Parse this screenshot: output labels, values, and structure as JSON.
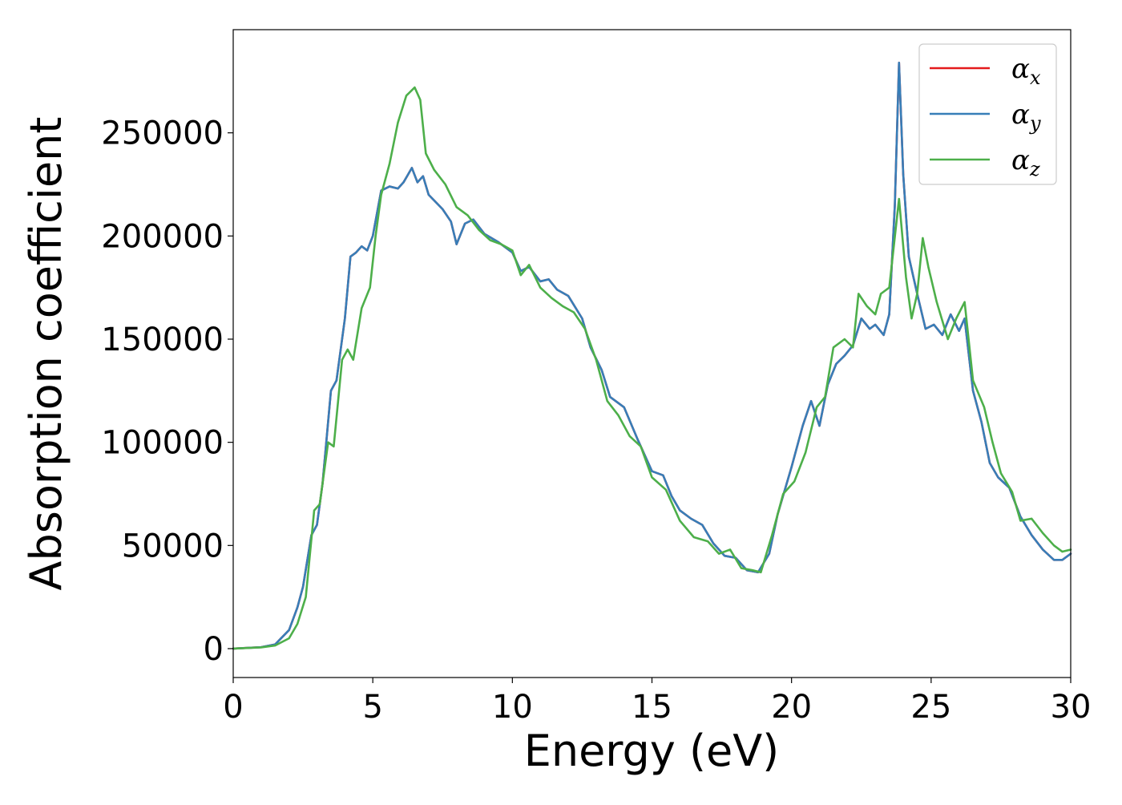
{
  "chart_data": {
    "type": "line",
    "xlabel": "Energy (eV)",
    "ylabel": "Absorption coefficient",
    "xlim": [
      0,
      30
    ],
    "ylim": [
      -14000,
      300000
    ],
    "x_ticks": [
      0,
      5,
      10,
      15,
      20,
      25,
      30
    ],
    "y_ticks": [
      0,
      50000,
      100000,
      150000,
      200000,
      250000
    ],
    "x_tick_labels": [
      "0",
      "5",
      "10",
      "15",
      "20",
      "25",
      "30"
    ],
    "y_tick_labels": [
      "0",
      "50000",
      "100000",
      "150000",
      "200000",
      "250000"
    ],
    "grid": false,
    "legend_position": "top-right",
    "series": [
      {
        "name": "αx",
        "legend_base": "α",
        "legend_sub": "x",
        "color": "#e41a1c",
        "points": [
          [
            0,
            0
          ],
          [
            1,
            700
          ],
          [
            1.5,
            2000
          ],
          [
            2,
            9000
          ],
          [
            2.3,
            20000
          ],
          [
            2.5,
            30000
          ],
          [
            2.8,
            55000
          ],
          [
            3,
            60000
          ],
          [
            3.2,
            80000
          ],
          [
            3.5,
            125000
          ],
          [
            3.7,
            130000
          ],
          [
            4,
            160000
          ],
          [
            4.2,
            190000
          ],
          [
            4.4,
            192000
          ],
          [
            4.6,
            195000
          ],
          [
            4.8,
            193000
          ],
          [
            5,
            200000
          ],
          [
            5.3,
            222000
          ],
          [
            5.6,
            224000
          ],
          [
            5.9,
            223000
          ],
          [
            6.1,
            226000
          ],
          [
            6.4,
            233000
          ],
          [
            6.6,
            226000
          ],
          [
            6.8,
            229000
          ],
          [
            7,
            220000
          ],
          [
            7.5,
            213000
          ],
          [
            7.8,
            207000
          ],
          [
            8,
            196000
          ],
          [
            8.3,
            206000
          ],
          [
            8.6,
            208000
          ],
          [
            9,
            201000
          ],
          [
            9.5,
            197000
          ],
          [
            10,
            192000
          ],
          [
            10.3,
            183000
          ],
          [
            10.6,
            185000
          ],
          [
            11,
            178000
          ],
          [
            11.3,
            179000
          ],
          [
            11.6,
            174000
          ],
          [
            12,
            171000
          ],
          [
            12.5,
            160000
          ],
          [
            12.8,
            146000
          ],
          [
            13.2,
            135000
          ],
          [
            13.5,
            122000
          ],
          [
            14,
            117000
          ],
          [
            14.5,
            101000
          ],
          [
            15,
            86000
          ],
          [
            15.4,
            84000
          ],
          [
            15.7,
            74000
          ],
          [
            16,
            67000
          ],
          [
            16.4,
            63000
          ],
          [
            16.8,
            60000
          ],
          [
            17.2,
            51000
          ],
          [
            17.6,
            45000
          ],
          [
            18,
            44000
          ],
          [
            18.4,
            38000
          ],
          [
            18.8,
            37000
          ],
          [
            19.2,
            46000
          ],
          [
            19.5,
            65000
          ],
          [
            20,
            88000
          ],
          [
            20.4,
            108000
          ],
          [
            20.7,
            120000
          ],
          [
            21,
            108000
          ],
          [
            21.3,
            128000
          ],
          [
            21.6,
            138000
          ],
          [
            21.9,
            142000
          ],
          [
            22.2,
            147000
          ],
          [
            22.5,
            160000
          ],
          [
            22.8,
            155000
          ],
          [
            23,
            157000
          ],
          [
            23.3,
            152000
          ],
          [
            23.5,
            162000
          ],
          [
            23.7,
            215000
          ],
          [
            23.85,
            284000
          ],
          [
            24,
            230000
          ],
          [
            24.2,
            190000
          ],
          [
            24.5,
            172000
          ],
          [
            24.8,
            155000
          ],
          [
            25.1,
            157000
          ],
          [
            25.4,
            152000
          ],
          [
            25.7,
            162000
          ],
          [
            26,
            154000
          ],
          [
            26.2,
            160000
          ],
          [
            26.5,
            125000
          ],
          [
            26.8,
            110000
          ],
          [
            27.1,
            90000
          ],
          [
            27.4,
            83000
          ],
          [
            27.8,
            78000
          ],
          [
            28.2,
            64000
          ],
          [
            28.6,
            55000
          ],
          [
            29,
            48000
          ],
          [
            29.4,
            43000
          ],
          [
            29.7,
            43000
          ],
          [
            30,
            46000
          ]
        ]
      },
      {
        "name": "αy",
        "legend_base": "α",
        "legend_sub": "y",
        "color": "#377eb8",
        "points": [
          [
            0,
            0
          ],
          [
            1,
            700
          ],
          [
            1.5,
            2000
          ],
          [
            2,
            9000
          ],
          [
            2.3,
            20000
          ],
          [
            2.5,
            30000
          ],
          [
            2.8,
            55000
          ],
          [
            3,
            60000
          ],
          [
            3.2,
            80000
          ],
          [
            3.5,
            125000
          ],
          [
            3.7,
            130000
          ],
          [
            4,
            160000
          ],
          [
            4.2,
            190000
          ],
          [
            4.4,
            192000
          ],
          [
            4.6,
            195000
          ],
          [
            4.8,
            193000
          ],
          [
            5,
            200000
          ],
          [
            5.3,
            222000
          ],
          [
            5.6,
            224000
          ],
          [
            5.9,
            223000
          ],
          [
            6.1,
            226000
          ],
          [
            6.4,
            233000
          ],
          [
            6.6,
            226000
          ],
          [
            6.8,
            229000
          ],
          [
            7,
            220000
          ],
          [
            7.5,
            213000
          ],
          [
            7.8,
            207000
          ],
          [
            8,
            196000
          ],
          [
            8.3,
            206000
          ],
          [
            8.6,
            208000
          ],
          [
            9,
            201000
          ],
          [
            9.5,
            197000
          ],
          [
            10,
            192000
          ],
          [
            10.3,
            183000
          ],
          [
            10.6,
            185000
          ],
          [
            11,
            178000
          ],
          [
            11.3,
            179000
          ],
          [
            11.6,
            174000
          ],
          [
            12,
            171000
          ],
          [
            12.5,
            160000
          ],
          [
            12.8,
            146000
          ],
          [
            13.2,
            135000
          ],
          [
            13.5,
            122000
          ],
          [
            14,
            117000
          ],
          [
            14.5,
            101000
          ],
          [
            15,
            86000
          ],
          [
            15.4,
            84000
          ],
          [
            15.7,
            74000
          ],
          [
            16,
            67000
          ],
          [
            16.4,
            63000
          ],
          [
            16.8,
            60000
          ],
          [
            17.2,
            51000
          ],
          [
            17.6,
            45000
          ],
          [
            18,
            44000
          ],
          [
            18.4,
            38000
          ],
          [
            18.8,
            37000
          ],
          [
            19.2,
            46000
          ],
          [
            19.5,
            65000
          ],
          [
            20,
            88000
          ],
          [
            20.4,
            108000
          ],
          [
            20.7,
            120000
          ],
          [
            21,
            108000
          ],
          [
            21.3,
            128000
          ],
          [
            21.6,
            138000
          ],
          [
            21.9,
            142000
          ],
          [
            22.2,
            147000
          ],
          [
            22.5,
            160000
          ],
          [
            22.8,
            155000
          ],
          [
            23,
            157000
          ],
          [
            23.3,
            152000
          ],
          [
            23.5,
            162000
          ],
          [
            23.7,
            215000
          ],
          [
            23.85,
            284000
          ],
          [
            24,
            230000
          ],
          [
            24.2,
            190000
          ],
          [
            24.5,
            172000
          ],
          [
            24.8,
            155000
          ],
          [
            25.1,
            157000
          ],
          [
            25.4,
            152000
          ],
          [
            25.7,
            162000
          ],
          [
            26,
            154000
          ],
          [
            26.2,
            160000
          ],
          [
            26.5,
            125000
          ],
          [
            26.8,
            110000
          ],
          [
            27.1,
            90000
          ],
          [
            27.4,
            83000
          ],
          [
            27.8,
            78000
          ],
          [
            28.2,
            64000
          ],
          [
            28.6,
            55000
          ],
          [
            29,
            48000
          ],
          [
            29.4,
            43000
          ],
          [
            29.7,
            43000
          ],
          [
            30,
            46000
          ]
        ]
      },
      {
        "name": "αz",
        "legend_base": "α",
        "legend_sub": "z",
        "color": "#4daf4a",
        "points": [
          [
            0,
            0
          ],
          [
            1,
            600
          ],
          [
            1.5,
            1500
          ],
          [
            2,
            5000
          ],
          [
            2.3,
            12000
          ],
          [
            2.6,
            25000
          ],
          [
            2.9,
            67000
          ],
          [
            3.1,
            70000
          ],
          [
            3.4,
            100000
          ],
          [
            3.6,
            98000
          ],
          [
            3.9,
            140000
          ],
          [
            4.1,
            145000
          ],
          [
            4.3,
            140000
          ],
          [
            4.6,
            165000
          ],
          [
            4.9,
            175000
          ],
          [
            5.1,
            200000
          ],
          [
            5.3,
            220000
          ],
          [
            5.6,
            235000
          ],
          [
            5.9,
            255000
          ],
          [
            6.2,
            268000
          ],
          [
            6.5,
            272000
          ],
          [
            6.7,
            266000
          ],
          [
            6.9,
            240000
          ],
          [
            7.2,
            232000
          ],
          [
            7.6,
            225000
          ],
          [
            8,
            214000
          ],
          [
            8.4,
            210000
          ],
          [
            8.8,
            203000
          ],
          [
            9.2,
            198000
          ],
          [
            9.6,
            196000
          ],
          [
            10,
            193000
          ],
          [
            10.3,
            181000
          ],
          [
            10.6,
            186000
          ],
          [
            11,
            175000
          ],
          [
            11.4,
            170000
          ],
          [
            11.8,
            166000
          ],
          [
            12.2,
            163000
          ],
          [
            12.6,
            155000
          ],
          [
            13,
            140000
          ],
          [
            13.4,
            120000
          ],
          [
            13.8,
            113000
          ],
          [
            14.2,
            103000
          ],
          [
            14.6,
            98000
          ],
          [
            15,
            83000
          ],
          [
            15.5,
            77000
          ],
          [
            16,
            62000
          ],
          [
            16.5,
            54000
          ],
          [
            17,
            52000
          ],
          [
            17.4,
            46000
          ],
          [
            17.8,
            48000
          ],
          [
            18.2,
            39000
          ],
          [
            18.6,
            38000
          ],
          [
            18.9,
            37000
          ],
          [
            19.3,
            55000
          ],
          [
            19.7,
            75000
          ],
          [
            20.1,
            81000
          ],
          [
            20.5,
            95000
          ],
          [
            20.9,
            117000
          ],
          [
            21.2,
            122000
          ],
          [
            21.5,
            146000
          ],
          [
            21.9,
            150000
          ],
          [
            22.2,
            146000
          ],
          [
            22.4,
            172000
          ],
          [
            22.7,
            166000
          ],
          [
            23,
            162000
          ],
          [
            23.2,
            172000
          ],
          [
            23.5,
            175000
          ],
          [
            23.85,
            218000
          ],
          [
            24.1,
            180000
          ],
          [
            24.3,
            160000
          ],
          [
            24.5,
            172000
          ],
          [
            24.7,
            199000
          ],
          [
            24.9,
            185000
          ],
          [
            25.2,
            168000
          ],
          [
            25.6,
            150000
          ],
          [
            25.9,
            160000
          ],
          [
            26.2,
            168000
          ],
          [
            26.5,
            130000
          ],
          [
            26.9,
            117000
          ],
          [
            27.2,
            100000
          ],
          [
            27.5,
            85000
          ],
          [
            27.9,
            76000
          ],
          [
            28.2,
            62000
          ],
          [
            28.6,
            63000
          ],
          [
            29,
            56000
          ],
          [
            29.4,
            50000
          ],
          [
            29.7,
            47000
          ],
          [
            30,
            48000
          ]
        ]
      }
    ]
  }
}
